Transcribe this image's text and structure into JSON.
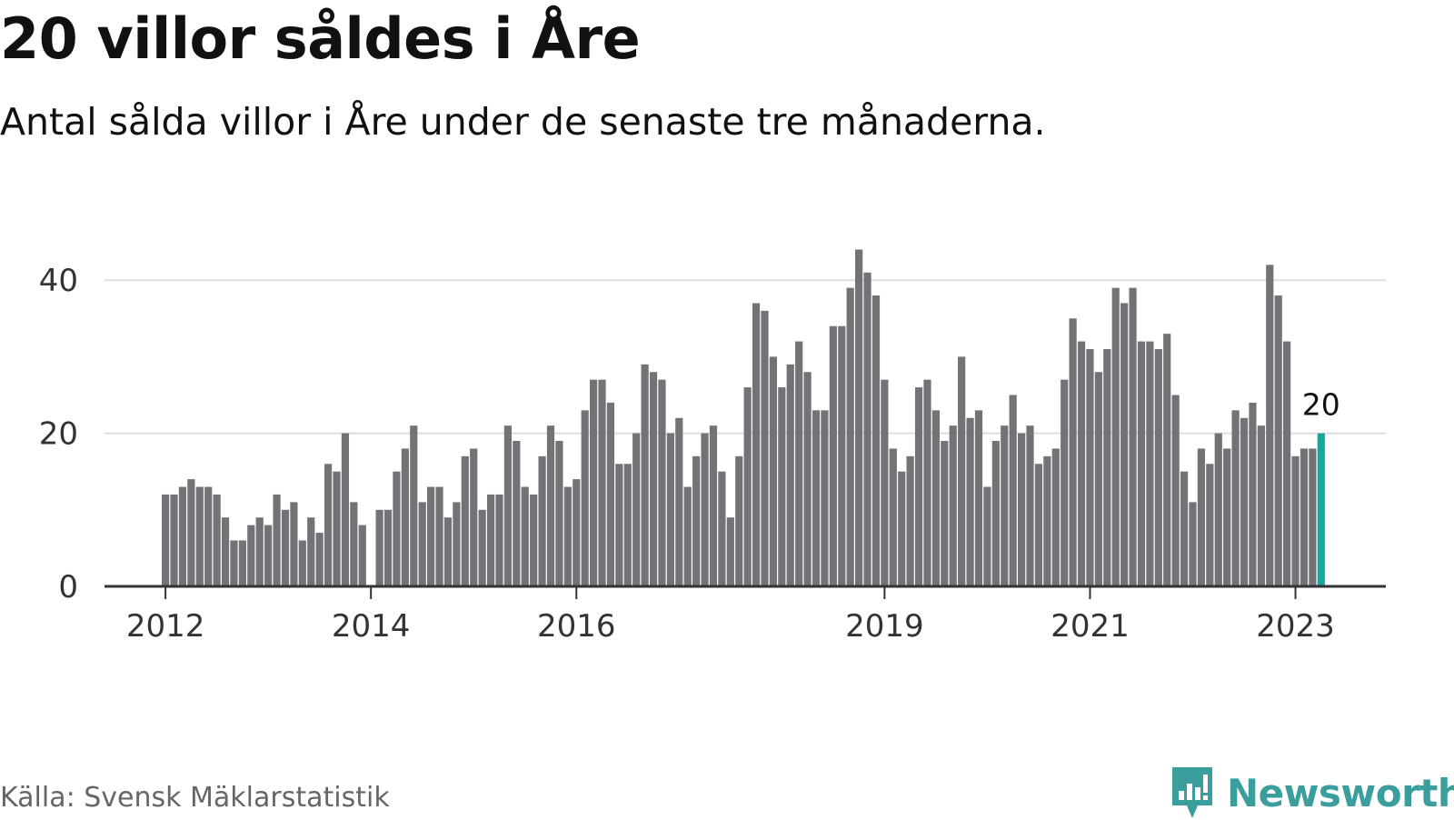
{
  "title": "20 villor såldes i Åre",
  "subtitle": "Antal sålda villor i Åre under de senaste tre månaderna.",
  "source": "Källa: Svensk Mäklarstatistik",
  "brand": {
    "name": "Newsworthy",
    "icon": "newsworthy-logo-icon",
    "color": "#3a9e9c"
  },
  "colors": {
    "bar": "#737277",
    "highlight": "#1aa69d",
    "grid": "#dddddd",
    "axis": "#333333"
  },
  "chart_data": {
    "type": "bar",
    "x_axis": "monthly, Jan 2012 – Apr 2023",
    "x_tick_labels": [
      "2012",
      "2014",
      "2016",
      "2019",
      "2021",
      "2023"
    ],
    "y_tick_labels": [
      "0",
      "20",
      "40"
    ],
    "ylim": [
      0,
      45
    ],
    "grid": true,
    "values": [
      12,
      12,
      13,
      14,
      13,
      13,
      12,
      9,
      6,
      6,
      8,
      9,
      8,
      12,
      10,
      11,
      6,
      9,
      7,
      16,
      15,
      20,
      11,
      8,
      0,
      10,
      10,
      15,
      18,
      21,
      11,
      13,
      13,
      9,
      11,
      17,
      18,
      10,
      12,
      12,
      21,
      19,
      13,
      12,
      17,
      21,
      19,
      13,
      14,
      23,
      27,
      27,
      24,
      16,
      16,
      20,
      29,
      28,
      27,
      20,
      22,
      13,
      17,
      20,
      21,
      15,
      9,
      17,
      26,
      37,
      36,
      30,
      26,
      29,
      32,
      28,
      23,
      23,
      34,
      34,
      39,
      44,
      41,
      38,
      27,
      18,
      15,
      17,
      26,
      27,
      23,
      19,
      21,
      30,
      22,
      23,
      13,
      19,
      21,
      25,
      20,
      21,
      16,
      17,
      18,
      27,
      35,
      32,
      31,
      28,
      31,
      39,
      37,
      39,
      32,
      32,
      31,
      33,
      25,
      15,
      11,
      18,
      16,
      20,
      18,
      23,
      22,
      24,
      21,
      42,
      38,
      32,
      17,
      18,
      18,
      20
    ],
    "highlight_index": 135,
    "annotation": {
      "text": "20",
      "index": 135
    }
  }
}
